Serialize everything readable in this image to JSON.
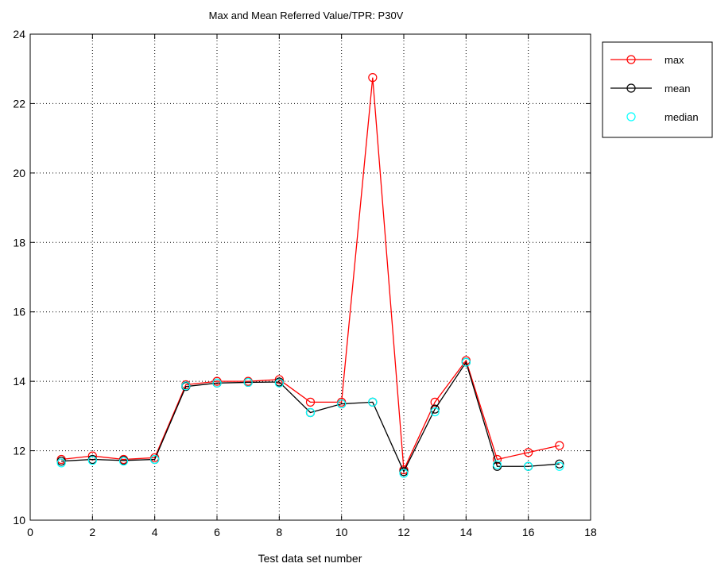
{
  "chart_data": {
    "type": "line",
    "title": "Max and Mean Referred Value/TPR: P30V",
    "xlabel": "Test data set number",
    "ylabel": "",
    "xlim": [
      0,
      18
    ],
    "ylim": [
      10,
      24
    ],
    "xticks": [
      0,
      2,
      4,
      6,
      8,
      10,
      12,
      14,
      16,
      18
    ],
    "yticks": [
      10,
      12,
      14,
      16,
      18,
      20,
      22,
      24
    ],
    "grid": true,
    "legend_position": "outside-top-right",
    "x": [
      1,
      2,
      3,
      4,
      5,
      6,
      7,
      8,
      9,
      10,
      11,
      12,
      13,
      14,
      15,
      16,
      17
    ],
    "series": [
      {
        "name": "max",
        "color": "#ff0000",
        "line": true,
        "marker": "circle",
        "values": [
          11.75,
          11.85,
          11.75,
          11.8,
          13.9,
          14.0,
          14.0,
          14.05,
          13.4,
          13.4,
          22.75,
          11.45,
          13.4,
          14.6,
          11.75,
          11.95,
          12.15
        ]
      },
      {
        "name": "mean",
        "color": "#000000",
        "line": true,
        "marker": "circle",
        "values": [
          11.7,
          11.75,
          11.72,
          11.75,
          13.85,
          13.95,
          13.97,
          13.98,
          13.1,
          13.35,
          13.4,
          11.4,
          13.2,
          14.55,
          11.55,
          11.55,
          11.62
        ]
      },
      {
        "name": "median",
        "color": "#00ffff",
        "line": false,
        "marker": "circle",
        "values": [
          11.65,
          11.72,
          11.7,
          11.75,
          13.87,
          13.95,
          13.97,
          13.95,
          13.1,
          13.35,
          13.4,
          11.35,
          13.12,
          14.55,
          11.6,
          11.55,
          11.55
        ]
      }
    ]
  }
}
